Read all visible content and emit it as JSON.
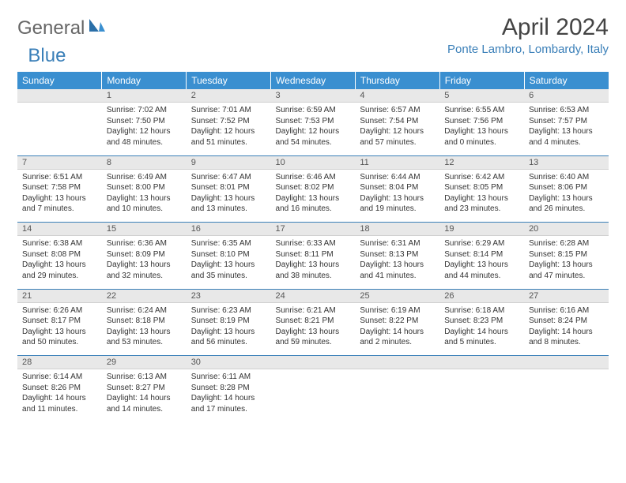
{
  "logo": {
    "text1": "General",
    "text2": "Blue"
  },
  "title": "April 2024",
  "location": "Ponte Lambro, Lombardy, Italy",
  "colors": {
    "header_bg": "#3a8fd0",
    "accent": "#3a7fb8",
    "daynum_bg": "#e8e8e8"
  },
  "weekdays": [
    "Sunday",
    "Monday",
    "Tuesday",
    "Wednesday",
    "Thursday",
    "Friday",
    "Saturday"
  ],
  "weeks": [
    [
      null,
      {
        "n": "1",
        "sr": "Sunrise: 7:02 AM",
        "ss": "Sunset: 7:50 PM",
        "dl": "Daylight: 12 hours and 48 minutes."
      },
      {
        "n": "2",
        "sr": "Sunrise: 7:01 AM",
        "ss": "Sunset: 7:52 PM",
        "dl": "Daylight: 12 hours and 51 minutes."
      },
      {
        "n": "3",
        "sr": "Sunrise: 6:59 AM",
        "ss": "Sunset: 7:53 PM",
        "dl": "Daylight: 12 hours and 54 minutes."
      },
      {
        "n": "4",
        "sr": "Sunrise: 6:57 AM",
        "ss": "Sunset: 7:54 PM",
        "dl": "Daylight: 12 hours and 57 minutes."
      },
      {
        "n": "5",
        "sr": "Sunrise: 6:55 AM",
        "ss": "Sunset: 7:56 PM",
        "dl": "Daylight: 13 hours and 0 minutes."
      },
      {
        "n": "6",
        "sr": "Sunrise: 6:53 AM",
        "ss": "Sunset: 7:57 PM",
        "dl": "Daylight: 13 hours and 4 minutes."
      }
    ],
    [
      {
        "n": "7",
        "sr": "Sunrise: 6:51 AM",
        "ss": "Sunset: 7:58 PM",
        "dl": "Daylight: 13 hours and 7 minutes."
      },
      {
        "n": "8",
        "sr": "Sunrise: 6:49 AM",
        "ss": "Sunset: 8:00 PM",
        "dl": "Daylight: 13 hours and 10 minutes."
      },
      {
        "n": "9",
        "sr": "Sunrise: 6:47 AM",
        "ss": "Sunset: 8:01 PM",
        "dl": "Daylight: 13 hours and 13 minutes."
      },
      {
        "n": "10",
        "sr": "Sunrise: 6:46 AM",
        "ss": "Sunset: 8:02 PM",
        "dl": "Daylight: 13 hours and 16 minutes."
      },
      {
        "n": "11",
        "sr": "Sunrise: 6:44 AM",
        "ss": "Sunset: 8:04 PM",
        "dl": "Daylight: 13 hours and 19 minutes."
      },
      {
        "n": "12",
        "sr": "Sunrise: 6:42 AM",
        "ss": "Sunset: 8:05 PM",
        "dl": "Daylight: 13 hours and 23 minutes."
      },
      {
        "n": "13",
        "sr": "Sunrise: 6:40 AM",
        "ss": "Sunset: 8:06 PM",
        "dl": "Daylight: 13 hours and 26 minutes."
      }
    ],
    [
      {
        "n": "14",
        "sr": "Sunrise: 6:38 AM",
        "ss": "Sunset: 8:08 PM",
        "dl": "Daylight: 13 hours and 29 minutes."
      },
      {
        "n": "15",
        "sr": "Sunrise: 6:36 AM",
        "ss": "Sunset: 8:09 PM",
        "dl": "Daylight: 13 hours and 32 minutes."
      },
      {
        "n": "16",
        "sr": "Sunrise: 6:35 AM",
        "ss": "Sunset: 8:10 PM",
        "dl": "Daylight: 13 hours and 35 minutes."
      },
      {
        "n": "17",
        "sr": "Sunrise: 6:33 AM",
        "ss": "Sunset: 8:11 PM",
        "dl": "Daylight: 13 hours and 38 minutes."
      },
      {
        "n": "18",
        "sr": "Sunrise: 6:31 AM",
        "ss": "Sunset: 8:13 PM",
        "dl": "Daylight: 13 hours and 41 minutes."
      },
      {
        "n": "19",
        "sr": "Sunrise: 6:29 AM",
        "ss": "Sunset: 8:14 PM",
        "dl": "Daylight: 13 hours and 44 minutes."
      },
      {
        "n": "20",
        "sr": "Sunrise: 6:28 AM",
        "ss": "Sunset: 8:15 PM",
        "dl": "Daylight: 13 hours and 47 minutes."
      }
    ],
    [
      {
        "n": "21",
        "sr": "Sunrise: 6:26 AM",
        "ss": "Sunset: 8:17 PM",
        "dl": "Daylight: 13 hours and 50 minutes."
      },
      {
        "n": "22",
        "sr": "Sunrise: 6:24 AM",
        "ss": "Sunset: 8:18 PM",
        "dl": "Daylight: 13 hours and 53 minutes."
      },
      {
        "n": "23",
        "sr": "Sunrise: 6:23 AM",
        "ss": "Sunset: 8:19 PM",
        "dl": "Daylight: 13 hours and 56 minutes."
      },
      {
        "n": "24",
        "sr": "Sunrise: 6:21 AM",
        "ss": "Sunset: 8:21 PM",
        "dl": "Daylight: 13 hours and 59 minutes."
      },
      {
        "n": "25",
        "sr": "Sunrise: 6:19 AM",
        "ss": "Sunset: 8:22 PM",
        "dl": "Daylight: 14 hours and 2 minutes."
      },
      {
        "n": "26",
        "sr": "Sunrise: 6:18 AM",
        "ss": "Sunset: 8:23 PM",
        "dl": "Daylight: 14 hours and 5 minutes."
      },
      {
        "n": "27",
        "sr": "Sunrise: 6:16 AM",
        "ss": "Sunset: 8:24 PM",
        "dl": "Daylight: 14 hours and 8 minutes."
      }
    ],
    [
      {
        "n": "28",
        "sr": "Sunrise: 6:14 AM",
        "ss": "Sunset: 8:26 PM",
        "dl": "Daylight: 14 hours and 11 minutes."
      },
      {
        "n": "29",
        "sr": "Sunrise: 6:13 AM",
        "ss": "Sunset: 8:27 PM",
        "dl": "Daylight: 14 hours and 14 minutes."
      },
      {
        "n": "30",
        "sr": "Sunrise: 6:11 AM",
        "ss": "Sunset: 8:28 PM",
        "dl": "Daylight: 14 hours and 17 minutes."
      },
      null,
      null,
      null,
      null
    ]
  ]
}
